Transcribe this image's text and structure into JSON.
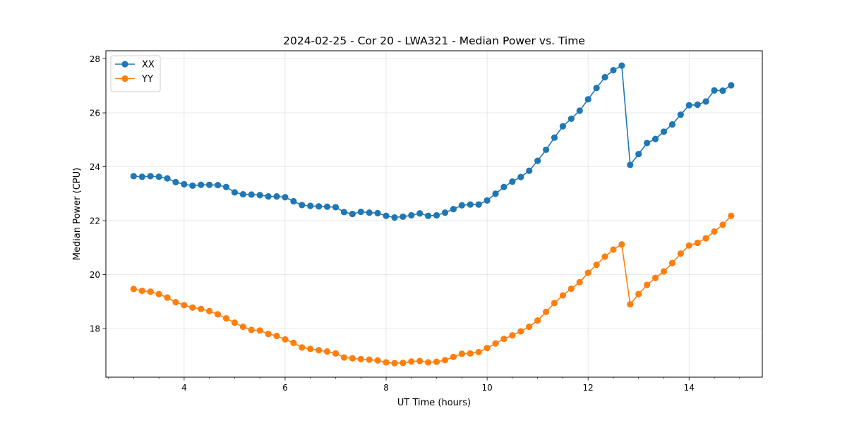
{
  "chart_data": {
    "type": "line",
    "title": "2024-02-25 - Cor 20 - LWA321 - Median Power vs. Time",
    "xlabel": "UT Time (hours)",
    "ylabel": "Median Power (CPU)",
    "xlim": [
      2.45,
      15.45
    ],
    "ylim": [
      16.2,
      28.3
    ],
    "xticks": [
      4,
      6,
      8,
      10,
      12,
      14
    ],
    "yticks": [
      18,
      20,
      22,
      24,
      26,
      28
    ],
    "grid": true,
    "legend_position": "upper-left",
    "x": [
      3.0,
      3.167,
      3.333,
      3.5,
      3.667,
      3.833,
      4.0,
      4.167,
      4.333,
      4.5,
      4.667,
      4.833,
      5.0,
      5.167,
      5.333,
      5.5,
      5.667,
      5.833,
      6.0,
      6.167,
      6.333,
      6.5,
      6.667,
      6.833,
      7.0,
      7.167,
      7.333,
      7.5,
      7.667,
      7.833,
      8.0,
      8.167,
      8.333,
      8.5,
      8.667,
      8.833,
      9.0,
      9.167,
      9.333,
      9.5,
      9.667,
      9.833,
      10.0,
      10.167,
      10.333,
      10.5,
      10.667,
      10.833,
      11.0,
      11.167,
      11.333,
      11.5,
      11.667,
      11.833,
      12.0,
      12.167,
      12.333,
      12.5,
      12.667,
      12.833,
      13.0,
      13.167,
      13.333,
      13.5,
      13.667,
      13.833,
      14.0,
      14.167,
      14.333,
      14.5,
      14.667,
      14.833
    ],
    "series": [
      {
        "name": "XX",
        "color": "#1f77b4",
        "values": [
          23.65,
          23.63,
          23.65,
          23.63,
          23.57,
          23.43,
          23.35,
          23.3,
          23.33,
          23.33,
          23.32,
          23.25,
          23.05,
          22.98,
          22.97,
          22.95,
          22.9,
          22.9,
          22.87,
          22.72,
          22.58,
          22.55,
          22.53,
          22.52,
          22.5,
          22.32,
          22.25,
          22.33,
          22.3,
          22.28,
          22.18,
          22.12,
          22.15,
          22.2,
          22.27,
          22.18,
          22.2,
          22.3,
          22.43,
          22.57,
          22.6,
          22.6,
          22.75,
          23.0,
          23.25,
          23.45,
          23.62,
          23.85,
          24.22,
          24.63,
          25.08,
          25.5,
          25.78,
          26.08,
          26.5,
          26.92,
          27.32,
          27.58,
          27.75,
          24.07,
          24.47,
          24.88,
          25.03,
          25.3,
          25.57,
          25.93,
          26.28,
          26.3,
          26.42,
          26.83,
          26.82,
          27.02
        ]
      },
      {
        "name": "YY",
        "color": "#ff7f0e",
        "values": [
          19.47,
          19.4,
          19.37,
          19.28,
          19.15,
          18.98,
          18.87,
          18.78,
          18.73,
          18.65,
          18.53,
          18.38,
          18.22,
          18.07,
          17.95,
          17.93,
          17.8,
          17.73,
          17.6,
          17.47,
          17.3,
          17.25,
          17.2,
          17.15,
          17.08,
          16.93,
          16.9,
          16.87,
          16.85,
          16.82,
          16.75,
          16.72,
          16.73,
          16.78,
          16.8,
          16.75,
          16.77,
          16.83,
          16.95,
          17.07,
          17.08,
          17.13,
          17.28,
          17.45,
          17.62,
          17.75,
          17.9,
          18.07,
          18.3,
          18.62,
          18.95,
          19.23,
          19.48,
          19.72,
          20.07,
          20.37,
          20.67,
          20.93,
          21.12,
          18.9,
          19.28,
          19.62,
          19.88,
          20.12,
          20.43,
          20.78,
          21.08,
          21.18,
          21.35,
          21.6,
          21.85,
          22.18
        ]
      }
    ]
  }
}
